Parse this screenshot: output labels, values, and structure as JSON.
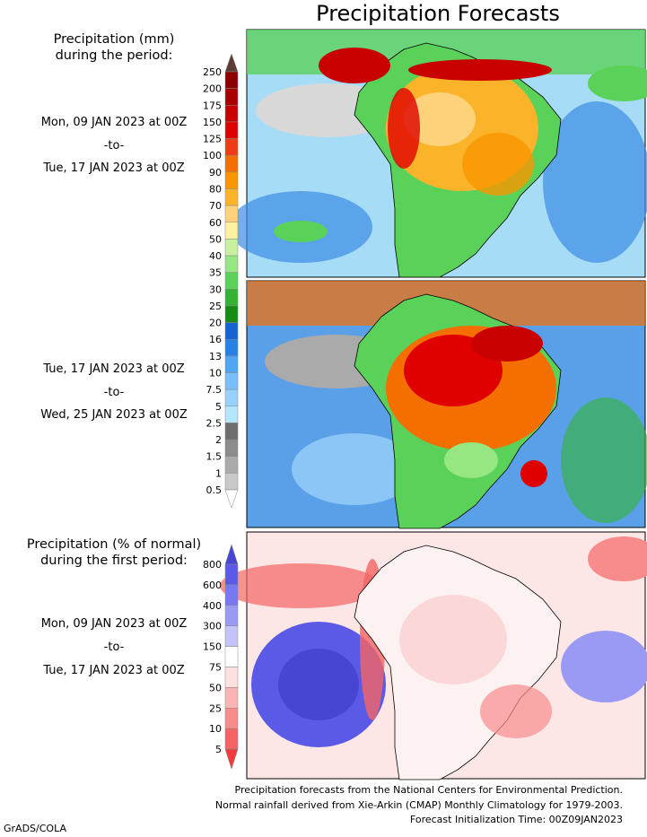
{
  "title": "Precipitation Forecasts",
  "panel1": {
    "header": [
      "Precipitation (mm)",
      "during the period:"
    ],
    "dates": [
      "Mon, 09 JAN 2023 at 00Z",
      "-to-",
      "Tue, 17 JAN 2023 at 00Z"
    ]
  },
  "panel2": {
    "dates": [
      "Tue, 17 JAN 2023 at 00Z",
      "-to-",
      "Wed, 25 JAN 2023 at 00Z"
    ]
  },
  "panel3": {
    "header": [
      "Precipitation (% of normal)",
      "during the first period:"
    ],
    "dates": [
      "Mon, 09 JAN 2023 at 00Z",
      "-to-",
      "Tue, 17 JAN 2023 at 00Z"
    ]
  },
  "colorbar_mm": {
    "levels": [
      250,
      200,
      175,
      150,
      125,
      100,
      90,
      80,
      70,
      60,
      50,
      40,
      35,
      30,
      25,
      20,
      16,
      13,
      10,
      7.5,
      5,
      2.5,
      2,
      1.5,
      1,
      0.5
    ],
    "colors": [
      "#5c3d33",
      "#8b0000",
      "#a80000",
      "#c80000",
      "#e00000",
      "#f03c14",
      "#f56e00",
      "#f99600",
      "#fbb42a",
      "#fdd27a",
      "#fdf0a0",
      "#c8f0a0",
      "#96e682",
      "#5ad25a",
      "#32b432",
      "#148c14",
      "#1464d2",
      "#2882e6",
      "#50a5f5",
      "#78bef9",
      "#96d2fa",
      "#b4e6fc",
      "#6e6e6e",
      "#8c8c8c",
      "#aaaaaa",
      "#c8c8c8",
      "#ffffff"
    ]
  },
  "colorbar_pct": {
    "levels": [
      800,
      600,
      400,
      300,
      150,
      75,
      50,
      25,
      10,
      5
    ],
    "colors": [
      "#4646d2",
      "#5a5ae6",
      "#7878f0",
      "#9a9af5",
      "#c3c3fa",
      "#ffffff",
      "#fde0e0",
      "#fbb4b4",
      "#f88c8c",
      "#f46464",
      "#f03c3c"
    ]
  },
  "footer": [
    "Precipitation forecasts from the National Centers for Environmental Prediction.",
    "Normal rainfall derived from Xie-Arkin (CMAP) Monthly Climatology for 1979-2003.",
    "Forecast Initialization Time: 00Z09JAN2023"
  ],
  "credit": "GrADS/COLA"
}
